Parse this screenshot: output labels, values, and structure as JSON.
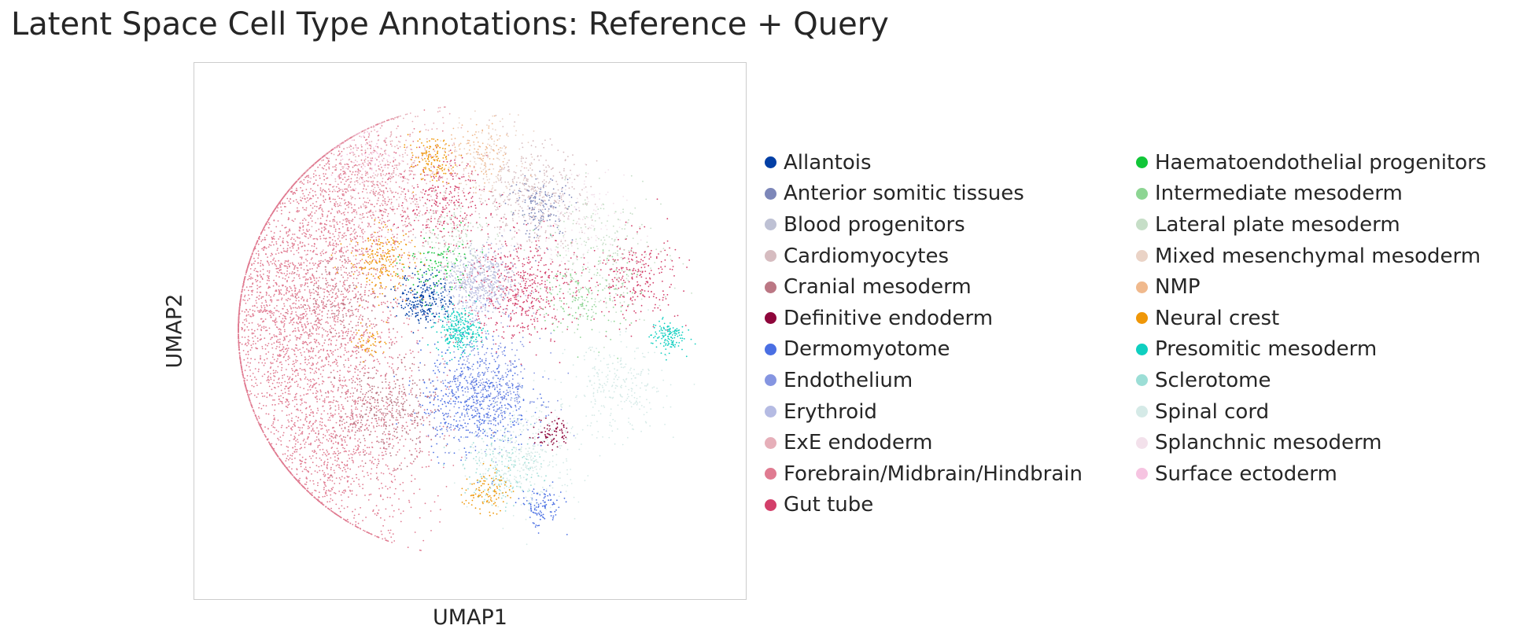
{
  "chart_data": {
    "type": "scatter",
    "title": "Latent Space Cell Type Annotations: Reference + Query",
    "xlabel": "UMAP1",
    "ylabel": "UMAP2",
    "grid": false,
    "ticks": false,
    "legend_placement": "right, two columns",
    "categories": [
      {
        "name": "Allantois",
        "color": "#023fa5"
      },
      {
        "name": "Anterior somitic tissues",
        "color": "#7d87b9"
      },
      {
        "name": "Blood progenitors",
        "color": "#bec1d4"
      },
      {
        "name": "Cardiomyocytes",
        "color": "#d6bcc0"
      },
      {
        "name": "Cranial mesoderm",
        "color": "#bb7784"
      },
      {
        "name": "Definitive endoderm",
        "color": "#8e063b"
      },
      {
        "name": "Dermomyotome",
        "color": "#4a6fe3"
      },
      {
        "name": "Endothelium",
        "color": "#8595e1"
      },
      {
        "name": "Erythroid",
        "color": "#b5bbe3"
      },
      {
        "name": "ExE endoderm",
        "color": "#e6afb9"
      },
      {
        "name": "Forebrain/Midbrain/Hindbrain",
        "color": "#e07b91"
      },
      {
        "name": "Gut tube",
        "color": "#d33f6a"
      },
      {
        "name": "Haematoendothelial progenitors",
        "color": "#11c638"
      },
      {
        "name": "Intermediate mesoderm",
        "color": "#8dd593"
      },
      {
        "name": "Lateral plate mesoderm",
        "color": "#c6dec7"
      },
      {
        "name": "Mixed mesenchymal mesoderm",
        "color": "#ead3c6"
      },
      {
        "name": "NMP",
        "color": "#f0b98d"
      },
      {
        "name": "Neural crest",
        "color": "#ef9708"
      },
      {
        "name": "Presomitic mesoderm",
        "color": "#0fcfc0"
      },
      {
        "name": "Sclerotome",
        "color": "#9cded6"
      },
      {
        "name": "Spinal cord",
        "color": "#d5eae7"
      },
      {
        "name": "Splanchnic mesoderm",
        "color": "#f3e1eb"
      },
      {
        "name": "Surface ectoderm",
        "color": "#f6c4e1"
      }
    ],
    "clusters": [
      {
        "category": "Forebrain/Midbrain/Hindbrain",
        "x": -3.2,
        "y": 0.2,
        "spread": 1.0,
        "weight": 8
      },
      {
        "category": "Forebrain/Midbrain/Hindbrain",
        "x": -2.6,
        "y": 2.5,
        "spread": 0.9,
        "weight": 5
      },
      {
        "category": "Forebrain/Midbrain/Hindbrain",
        "x": -2.6,
        "y": -2.3,
        "spread": 0.9,
        "weight": 5
      },
      {
        "category": "ExE endoderm",
        "x": -1.5,
        "y": 2.8,
        "spread": 0.7,
        "weight": 2
      },
      {
        "category": "Gut tube",
        "x": 0.9,
        "y": 0.8,
        "spread": 0.5,
        "weight": 2
      },
      {
        "category": "Gut tube",
        "x": 3.0,
        "y": 1.0,
        "spread": 0.4,
        "weight": 1
      },
      {
        "category": "Gut tube",
        "x": -0.5,
        "y": 2.4,
        "spread": 0.4,
        "weight": 1
      },
      {
        "category": "Allantois",
        "x": -0.8,
        "y": 0.6,
        "spread": 0.25,
        "weight": 1
      },
      {
        "category": "Erythroid",
        "x": 0.1,
        "y": 0.8,
        "spread": 0.35,
        "weight": 1.5
      },
      {
        "category": "Blood progenitors",
        "x": 0.2,
        "y": 1.0,
        "spread": 0.35,
        "weight": 0.8
      },
      {
        "category": "Presomitic mesoderm",
        "x": -0.2,
        "y": 0.0,
        "spread": 0.2,
        "weight": 1
      },
      {
        "category": "Presomitic mesoderm",
        "x": 3.6,
        "y": -0.1,
        "spread": 0.15,
        "weight": 0.5
      },
      {
        "category": "Dermomyotome",
        "x": 0.1,
        "y": -1.3,
        "spread": 0.5,
        "weight": 2
      },
      {
        "category": "Endothelium",
        "x": 0.3,
        "y": -1.1,
        "spread": 0.5,
        "weight": 1.5
      },
      {
        "category": "Dermomyotome",
        "x": 1.3,
        "y": -3.3,
        "spread": 0.2,
        "weight": 0.4
      },
      {
        "category": "Cranial mesoderm",
        "x": -1.5,
        "y": -1.5,
        "spread": 0.45,
        "weight": 1.5
      },
      {
        "category": "Cranial mesoderm",
        "x": -2.3,
        "y": 0.6,
        "spread": 0.4,
        "weight": 0.6
      },
      {
        "category": "Cardiomyocytes",
        "x": 1.1,
        "y": 2.5,
        "spread": 0.5,
        "weight": 1.5
      },
      {
        "category": "Anterior somitic tissues",
        "x": 1.3,
        "y": 2.3,
        "spread": 0.3,
        "weight": 0.6
      },
      {
        "category": "Spinal cord",
        "x": 1.0,
        "y": -2.3,
        "spread": 0.5,
        "weight": 1.5
      },
      {
        "category": "Spinal cord",
        "x": 2.7,
        "y": -1.1,
        "spread": 0.45,
        "weight": 1
      },
      {
        "category": "Sclerotome",
        "x": 0.6,
        "y": -2.6,
        "spread": 0.35,
        "weight": 0.6
      },
      {
        "category": "Lateral plate mesoderm",
        "x": 2.4,
        "y": 1.4,
        "spread": 0.6,
        "weight": 1
      },
      {
        "category": "Lateral plate mesoderm",
        "x": -0.4,
        "y": 1.8,
        "spread": 0.35,
        "weight": 0.5
      },
      {
        "category": "Intermediate mesoderm",
        "x": 2.1,
        "y": 0.6,
        "spread": 0.4,
        "weight": 0.6
      },
      {
        "category": "Haematoendothelial progenitors",
        "x": -0.6,
        "y": 1.2,
        "spread": 0.3,
        "weight": 0.4
      },
      {
        "category": "Neural crest",
        "x": -1.6,
        "y": 1.3,
        "spread": 0.3,
        "weight": 0.8
      },
      {
        "category": "Neural crest",
        "x": -0.7,
        "y": 3.2,
        "spread": 0.2,
        "weight": 0.5
      },
      {
        "category": "Neural crest",
        "x": 0.3,
        "y": -3.0,
        "spread": 0.2,
        "weight": 0.4
      },
      {
        "category": "Neural crest",
        "x": -1.8,
        "y": -0.2,
        "spread": 0.15,
        "weight": 0.2
      },
      {
        "category": "Definitive endoderm",
        "x": 1.5,
        "y": -1.9,
        "spread": 0.15,
        "weight": 0.3
      },
      {
        "category": "Mixed mesenchymal mesoderm",
        "x": 0.4,
        "y": 3.2,
        "spread": 0.4,
        "weight": 0.6
      },
      {
        "category": "NMP",
        "x": 0.2,
        "y": 3.3,
        "spread": 0.3,
        "weight": 0.4
      },
      {
        "category": "Splanchnic mesoderm",
        "x": 1.8,
        "y": 1.9,
        "spread": 0.5,
        "weight": 0.6
      },
      {
        "category": "Surface ectoderm",
        "x": -1.9,
        "y": 3.3,
        "spread": 0.3,
        "weight": 0.3
      }
    ]
  }
}
